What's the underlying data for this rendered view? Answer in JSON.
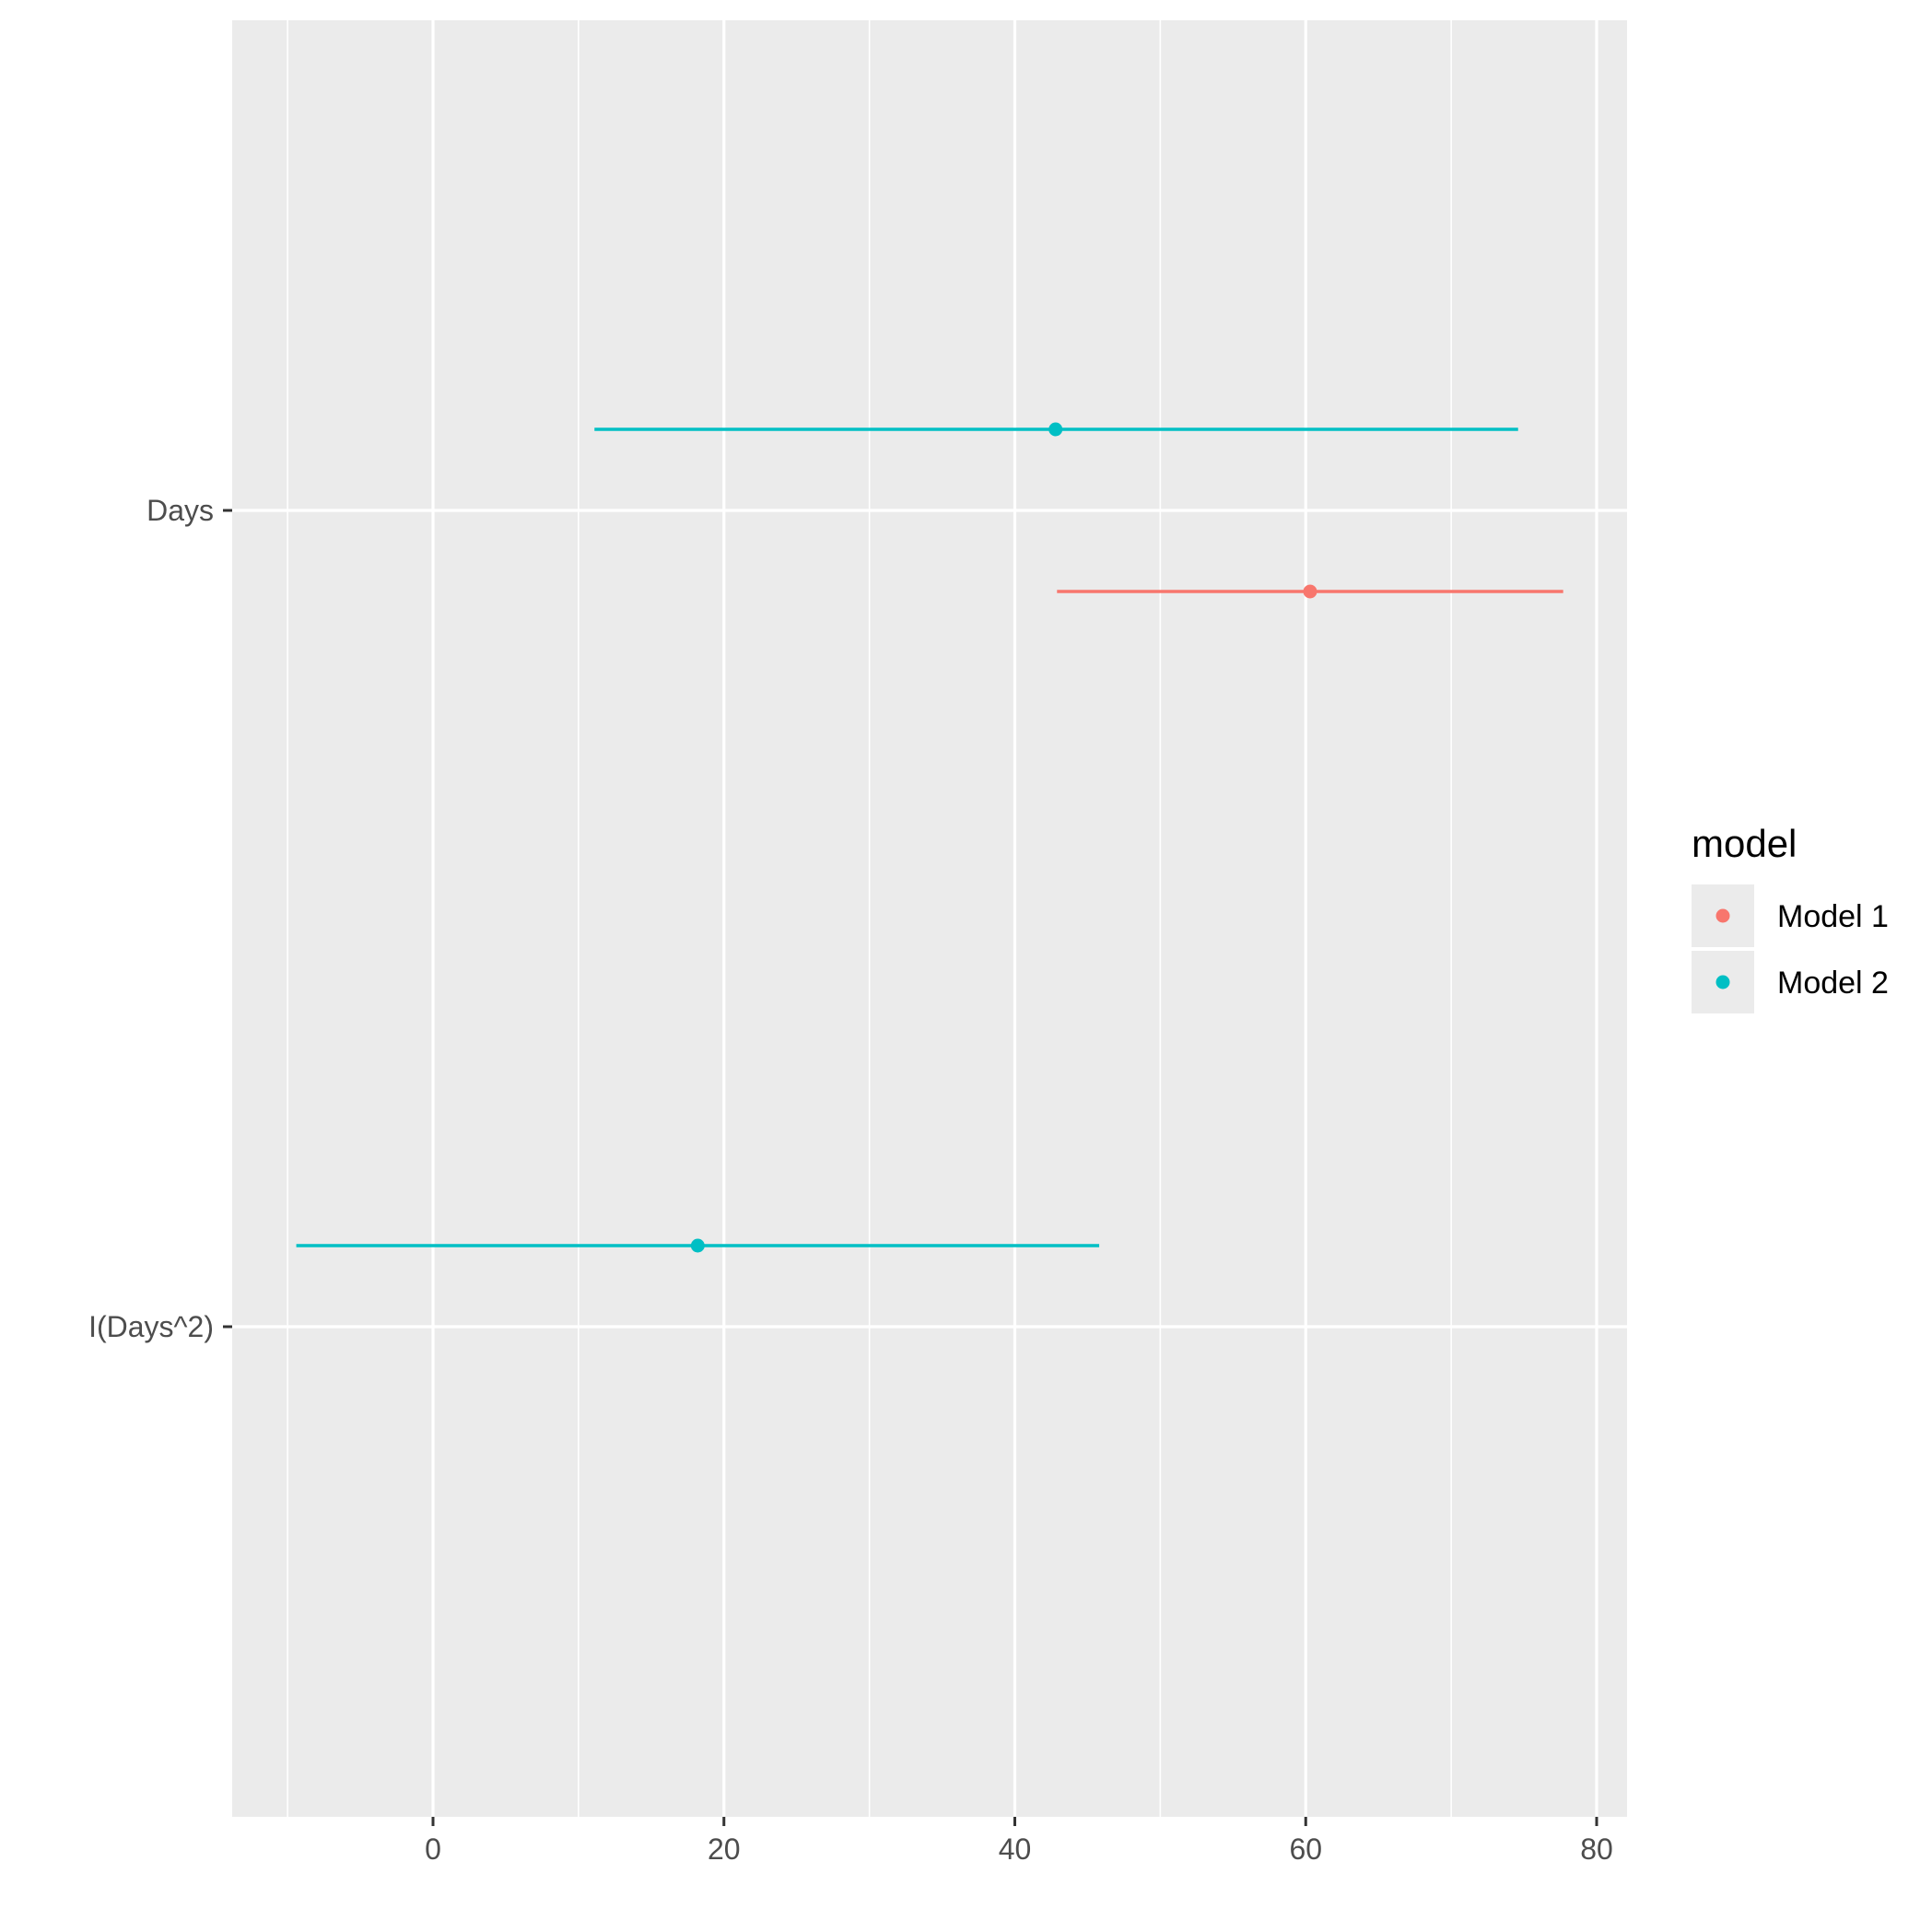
{
  "chart_data": {
    "type": "dot-whisker",
    "title": "",
    "xlabel": "",
    "ylabel": "",
    "xlim": [
      -10,
      82
    ],
    "x_ticks": [
      0,
      20,
      40,
      60,
      80
    ],
    "x_tick_labels": [
      "0",
      "20",
      "40",
      "60",
      "80"
    ],
    "categories": [
      "Days",
      "I(Days^2)"
    ],
    "grid": true,
    "legend_title": "model",
    "legend_position": "right",
    "series": [
      {
        "name": "Model 1",
        "color": "#F8766D",
        "points": [
          {
            "term": "Days",
            "estimate": 60.3,
            "low": 42.9,
            "high": 77.7
          }
        ]
      },
      {
        "name": "Model 2",
        "color": "#00BFC4",
        "points": [
          {
            "term": "Days",
            "estimate": 42.8,
            "low": 11.1,
            "high": 74.6
          },
          {
            "term": "I(Days^2)",
            "estimate": 18.2,
            "low": -9.4,
            "high": 45.8
          }
        ]
      }
    ]
  }
}
